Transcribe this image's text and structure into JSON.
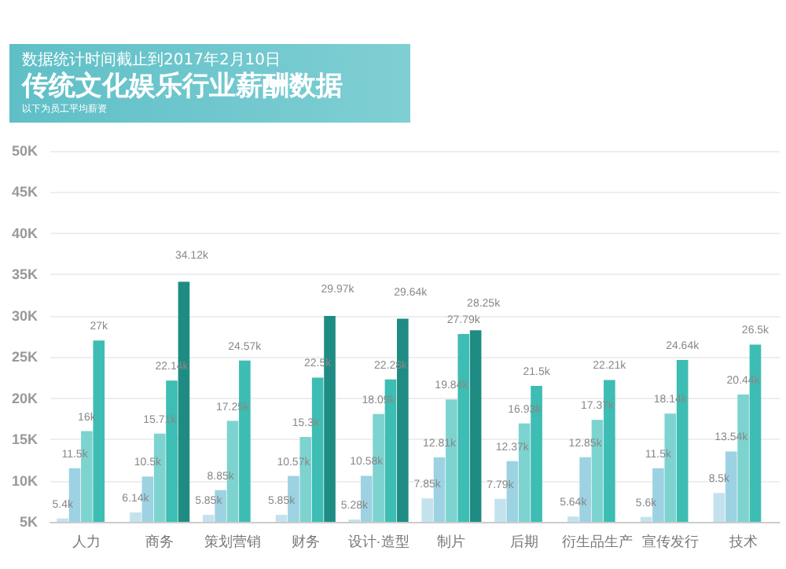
{
  "chart_data": {
    "type": "bar",
    "title": "传统文化娱乐行业薪酬数据",
    "subtitle": "数据统计时间截止到2017年2月10日",
    "annotations": [
      "以下为员工平均薪资"
    ],
    "categories": [
      "人力",
      "商务",
      "策划营销",
      "财务",
      "设计·造型",
      "制片",
      "后期",
      "衍生品生产",
      "宣传发行",
      "技术"
    ],
    "series": [
      {
        "color": "#c4e2ee",
        "values": [
          5.4,
          6.14,
          5.85,
          5.85,
          5.28,
          7.85,
          7.79,
          5.64,
          5.6,
          8.5
        ],
        "value_labels": [
          "5.4k",
          "6.14k",
          "5.85k",
          "5.85k",
          "5.28k",
          "7.85k",
          "7.79k",
          "5.64k",
          "5.6k",
          "8.5k"
        ]
      },
      {
        "color": "#9dd2e3",
        "values": [
          11.5,
          10.5,
          8.85,
          10.57,
          10.58,
          12.81,
          12.37,
          12.85,
          11.5,
          13.54
        ],
        "value_labels": [
          "11.5k",
          "10.5k",
          "8.85k",
          "10.57k",
          "10.58k",
          "12.81k",
          "12.37k",
          "12.85k",
          "11.5k",
          "13.54k"
        ]
      },
      {
        "color": "#7dd3d0",
        "values": [
          16,
          15.71,
          17.25,
          15.3,
          18.09,
          19.84,
          16.93,
          17.37,
          18.14,
          20.44
        ],
        "value_labels": [
          "16k",
          "15.71k",
          "17.25k",
          "15.3k",
          "18.09k",
          "19.84k",
          "16.93k",
          "17.37k",
          "18.14k",
          "20.44k"
        ]
      },
      {
        "color": "#3dbdb3",
        "values": [
          27,
          22.14,
          24.57,
          22.5,
          22.28,
          27.79,
          21.5,
          22.21,
          24.64,
          26.5
        ],
        "value_labels": [
          "27k",
          "22.14k",
          "24.57k",
          "22.5k",
          "22.28k",
          "27.79k",
          "21.5k",
          "22.21k",
          "24.64k",
          "26.5k"
        ]
      },
      {
        "color": "#1f8c84",
        "values": [
          null,
          34.12,
          null,
          29.97,
          29.64,
          28.25,
          null,
          null,
          null,
          null
        ],
        "value_labels": [
          null,
          "34.12k",
          null,
          "29.97k",
          "29.64k",
          "28.25k",
          null,
          null,
          null,
          null
        ]
      }
    ],
    "ylim": [
      5,
      50
    ],
    "yticks": [
      {
        "value": 5,
        "label": "5K"
      },
      {
        "value": 10,
        "label": "10K"
      },
      {
        "value": 15,
        "label": "15K"
      },
      {
        "value": 20,
        "label": "20K"
      },
      {
        "value": 25,
        "label": "25K"
      },
      {
        "value": 30,
        "label": "30K"
      },
      {
        "value": 35,
        "label": "35K"
      },
      {
        "value": 40,
        "label": "40K"
      },
      {
        "value": 45,
        "label": "45K"
      },
      {
        "value": 50,
        "label": "50K"
      }
    ],
    "grid": "y"
  }
}
